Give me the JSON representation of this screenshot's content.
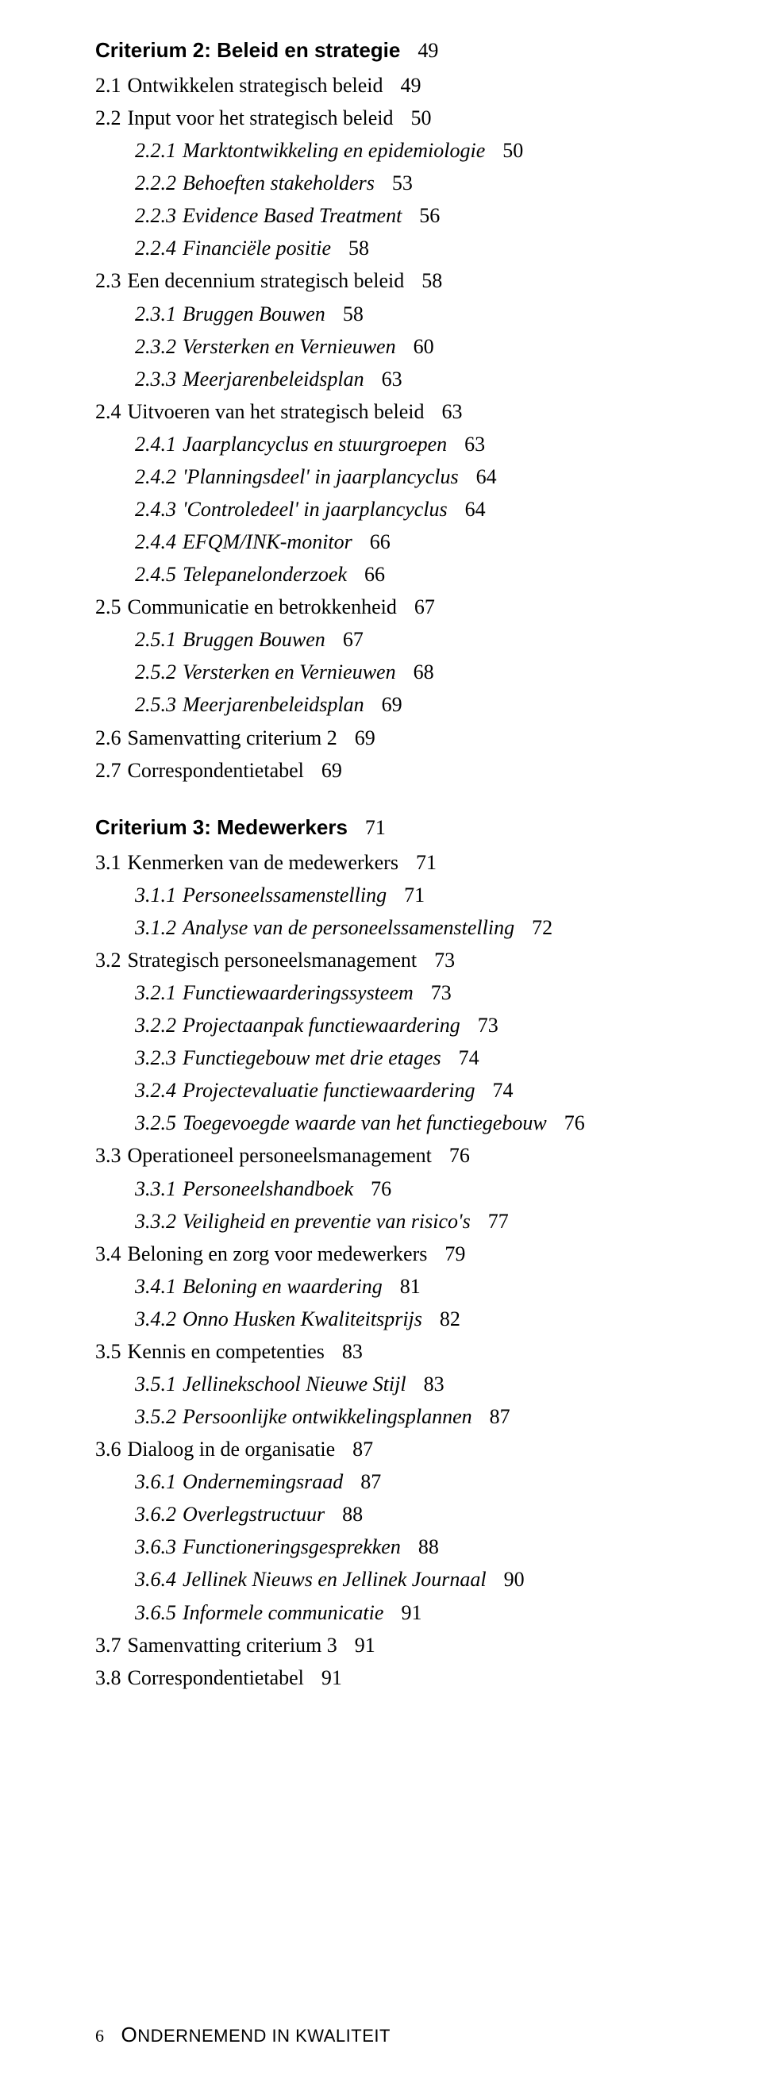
{
  "sections": [
    {
      "heading_label": "Criterium 2: Beleid en strategie",
      "heading_page": "49",
      "heading_class": "heading-top",
      "entries": [
        {
          "level": 1,
          "num": "2.1",
          "label": "Ontwikkelen strategisch beleid",
          "page": "49"
        },
        {
          "level": 1,
          "num": "2.2",
          "label": "Input voor het strategisch beleid",
          "page": "50"
        },
        {
          "level": 2,
          "num": "2.2.1",
          "label": "Marktontwikkeling en epidemiologie",
          "page": "50"
        },
        {
          "level": 2,
          "num": "2.2.2",
          "label": "Behoeften stakeholders",
          "page": "53"
        },
        {
          "level": 2,
          "num": "2.2.3",
          "label": "Evidence Based Treatment",
          "page": "56"
        },
        {
          "level": 2,
          "num": "2.2.4",
          "label": "Financiële positie",
          "page": "58"
        },
        {
          "level": 1,
          "num": "2.3",
          "label": "Een decennium strategisch beleid",
          "page": "58"
        },
        {
          "level": 2,
          "num": "2.3.1",
          "label": "Bruggen Bouwen",
          "page": "58"
        },
        {
          "level": 2,
          "num": "2.3.2",
          "label": "Versterken en Vernieuwen",
          "page": "60"
        },
        {
          "level": 2,
          "num": "2.3.3",
          "label": "Meerjarenbeleidsplan",
          "page": "63"
        },
        {
          "level": 1,
          "num": "2.4",
          "label": "Uitvoeren van het strategisch beleid",
          "page": "63"
        },
        {
          "level": 2,
          "num": "2.4.1",
          "label": "Jaarplancyclus en stuurgroepen",
          "page": "63"
        },
        {
          "level": 2,
          "num": "2.4.2",
          "label": "'Planningsdeel' in jaarplancyclus",
          "page": "64"
        },
        {
          "level": 2,
          "num": "2.4.3",
          "label": "'Controledeel' in jaarplancyclus",
          "page": "64"
        },
        {
          "level": 2,
          "num": "2.4.4",
          "label": "EFQM/INK-monitor",
          "page": "66"
        },
        {
          "level": 2,
          "num": "2.4.5",
          "label": "Telepanelonderzoek",
          "page": "66"
        },
        {
          "level": 1,
          "num": "2.5",
          "label": "Communicatie en betrokkenheid",
          "page": "67"
        },
        {
          "level": 2,
          "num": "2.5.1",
          "label": "Bruggen Bouwen",
          "page": "67"
        },
        {
          "level": 2,
          "num": "2.5.2",
          "label": "Versterken en Vernieuwen",
          "page": "68"
        },
        {
          "level": 2,
          "num": "2.5.3",
          "label": "Meerjarenbeleidsplan",
          "page": "69"
        },
        {
          "level": 1,
          "num": "2.6",
          "label": "Samenvatting criterium 2",
          "page": "69"
        },
        {
          "level": 1,
          "num": "2.7",
          "label": "Correspondentietabel",
          "page": "69"
        }
      ]
    },
    {
      "heading_label": "Criterium 3: Medewerkers",
      "heading_page": "71",
      "heading_class": "heading-mid",
      "entries": [
        {
          "level": 1,
          "num": "3.1",
          "label": "Kenmerken van de medewerkers",
          "page": "71"
        },
        {
          "level": 2,
          "num": "3.1.1",
          "label": "Personeelssamenstelling",
          "page": "71"
        },
        {
          "level": 2,
          "num": "3.1.2",
          "label": "Analyse van de personeelssamenstelling",
          "page": "72"
        },
        {
          "level": 1,
          "num": "3.2",
          "label": "Strategisch personeelsmanagement",
          "page": "73"
        },
        {
          "level": 2,
          "num": "3.2.1",
          "label": "Functiewaarderingssysteem",
          "page": "73"
        },
        {
          "level": 2,
          "num": "3.2.2",
          "label": "Projectaanpak functiewaardering",
          "page": "73"
        },
        {
          "level": 2,
          "num": "3.2.3",
          "label": "Functiegebouw met drie etages",
          "page": "74"
        },
        {
          "level": 2,
          "num": "3.2.4",
          "label": "Projectevaluatie functiewaardering",
          "page": "74"
        },
        {
          "level": 2,
          "num": "3.2.5",
          "label": "Toegevoegde waarde van het functiegebouw",
          "page": "76"
        },
        {
          "level": 1,
          "num": "3.3",
          "label": "Operationeel personeelsmanagement",
          "page": "76"
        },
        {
          "level": 2,
          "num": "3.3.1",
          "label": "Personeelshandboek",
          "page": "76"
        },
        {
          "level": 2,
          "num": "3.3.2",
          "label": "Veiligheid en preventie van risico's",
          "page": "77"
        },
        {
          "level": 1,
          "num": "3.4",
          "label": "Beloning en zorg voor medewerkers",
          "page": "79"
        },
        {
          "level": 2,
          "num": "3.4.1",
          "label": "Beloning en waardering",
          "page": "81"
        },
        {
          "level": 2,
          "num": "3.4.2",
          "label": "Onno Husken Kwaliteitsprijs",
          "page": "82"
        },
        {
          "level": 1,
          "num": "3.5",
          "label": "Kennis en competenties",
          "page": "83"
        },
        {
          "level": 2,
          "num": "3.5.1",
          "label": "Jellinekschool Nieuwe Stijl",
          "page": "83"
        },
        {
          "level": 2,
          "num": "3.5.2",
          "label": "Persoonlijke ontwikkelingsplannen",
          "page": "87"
        },
        {
          "level": 1,
          "num": "3.6",
          "label": "Dialoog in de organisatie",
          "page": "87"
        },
        {
          "level": 2,
          "num": "3.6.1",
          "label": "Ondernemingsraad",
          "page": "87"
        },
        {
          "level": 2,
          "num": "3.6.2",
          "label": "Overlegstructuur",
          "page": "88"
        },
        {
          "level": 2,
          "num": "3.6.3",
          "label": "Functioneringsgesprekken",
          "page": "88"
        },
        {
          "level": 2,
          "num": "3.6.4",
          "label": "Jellinek Nieuws en Jellinek Journaal",
          "page": "90"
        },
        {
          "level": 2,
          "num": "3.6.5",
          "label": "Informele communicatie",
          "page": "91"
        },
        {
          "level": 1,
          "num": "3.7",
          "label": "Samenvatting criterium 3",
          "page": "91"
        },
        {
          "level": 1,
          "num": "3.8",
          "label": "Correspondentietabel",
          "page": "91"
        }
      ]
    }
  ],
  "footer": {
    "pagenum": "6",
    "first": "O",
    "rest": "NDERNEMEND IN KWALITEIT"
  }
}
